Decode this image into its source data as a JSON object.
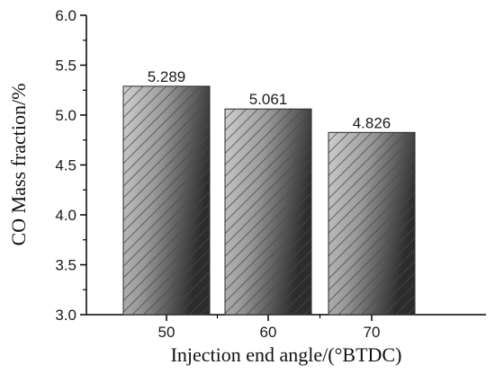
{
  "chart_data": {
    "type": "bar",
    "categories": [
      "50",
      "60",
      "70"
    ],
    "values": [
      5.289,
      5.061,
      4.826
    ],
    "data_labels": [
      "5.289",
      "5.061",
      "4.826"
    ],
    "title": "",
    "xlabel": "Injection end angle/(°BTDC)",
    "ylabel": "CO Mass fraction/%",
    "ylim": [
      3.0,
      6.0
    ],
    "yticks": [
      "3.0",
      "3.5",
      "4.0",
      "4.5",
      "5.0",
      "5.5",
      "6.0"
    ],
    "grid": false,
    "legend": "none",
    "bar_style": "hatched-gradient",
    "colors": {
      "bar_light": "#cfcfcf",
      "bar_dark": "#2c2c2c",
      "hatch": "#4a4a4a",
      "axis": "#000000"
    }
  }
}
